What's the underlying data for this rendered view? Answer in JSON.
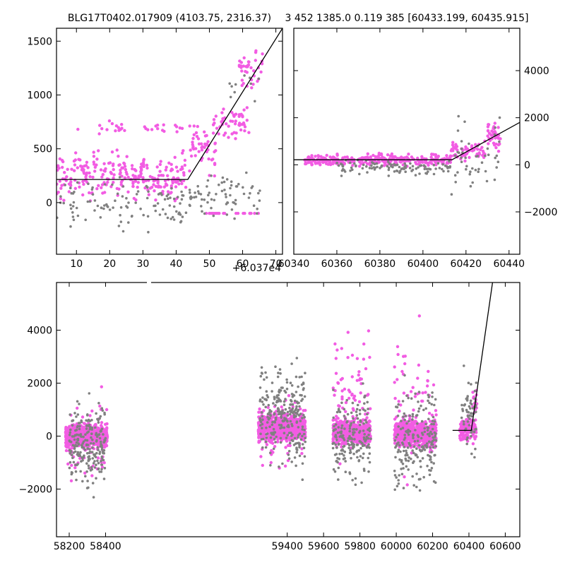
{
  "colors": {
    "magenta": "#f25ce3",
    "gray": "#808080",
    "model_line": "#000000",
    "frame": "#000000",
    "background": "#ffffff"
  },
  "chart_data": [
    {
      "id": "top-left",
      "type": "scatter",
      "title": "BLG17T0402.017909 (4103.75, 2316.37)",
      "xlim": [
        4,
        72
      ],
      "ylim": [
        -480,
        1620
      ],
      "x_offset_label": "+6.037e4",
      "xticks": [
        10,
        20,
        30,
        40,
        50,
        60,
        70
      ],
      "xtick_labels": [
        "10",
        "20",
        "30",
        "40",
        "50",
        "60",
        "70"
      ],
      "yticks": [
        0,
        500,
        1000,
        1500
      ],
      "ytick_labels": [
        "0",
        "500",
        "1000",
        "1500"
      ],
      "yaxis_side": "left",
      "model_line": {
        "x": [
          4,
          43.5,
          72
        ],
        "y": [
          215,
          215,
          1620
        ]
      },
      "series": [
        {
          "color": "magenta",
          "marker_radius": 2.2,
          "clusters": [
            {
              "x": [
                4,
                43
              ],
              "y": [
                -100,
                600
              ],
              "n": 260
            },
            {
              "x": [
                8,
                42
              ],
              "y": [
                600,
                780
              ],
              "n": 30
            },
            {
              "x": [
                44,
                52
              ],
              "y": [
                150,
                900
              ],
              "n": 50
            },
            {
              "x": [
                51,
                62
              ],
              "y": [
                500,
                1000
              ],
              "n": 50
            },
            {
              "x": [
                59,
                66
              ],
              "y": [
                900,
                1550
              ],
              "n": 40
            },
            {
              "x": [
                49,
                65
              ],
              "y": [
                -100,
                -100
              ],
              "n": 22
            }
          ]
        },
        {
          "color": "gray",
          "marker_radius": 1.8,
          "clusters": [
            {
              "x": [
                4,
                43
              ],
              "y": [
                -420,
                350
              ],
              "n": 110
            },
            {
              "x": [
                44,
                66
              ],
              "y": [
                -300,
                400
              ],
              "n": 70
            },
            {
              "x": [
                55,
                66
              ],
              "y": [
                800,
                1350
              ],
              "n": 10
            }
          ]
        }
      ]
    },
    {
      "id": "top-right",
      "type": "scatter",
      "title": "3 452 1385.0 0.119 385 [60433.199, 60435.915]",
      "xlim": [
        60340,
        60445
      ],
      "ylim": [
        -3800,
        5800
      ],
      "xticks": [
        60340,
        60360,
        60380,
        60400,
        60420,
        60440
      ],
      "xtick_labels": [
        "60340",
        "60360",
        "60380",
        "60400",
        "60420",
        "60440"
      ],
      "yticks": [
        -2000,
        0,
        2000,
        4000
      ],
      "ytick_labels": [
        "−2000",
        "0",
        "2000",
        "4000"
      ],
      "yaxis_side": "right",
      "model_line": {
        "x": [
          60340,
          60413.5,
          60445
        ],
        "y": [
          215,
          215,
          1800
        ]
      },
      "series": [
        {
          "color": "magenta",
          "marker_radius": 2.2,
          "clusters": [
            {
              "x": [
                60345,
                60413
              ],
              "y": [
                -200,
                600
              ],
              "n": 300
            },
            {
              "x": [
                60413,
                60430
              ],
              "y": [
                -100,
                1200
              ],
              "n": 60
            },
            {
              "x": [
                60430,
                60436
              ],
              "y": [
                300,
                2200
              ],
              "n": 40
            }
          ]
        },
        {
          "color": "gray",
          "marker_radius": 1.8,
          "clusters": [
            {
              "x": [
                60360,
                60413
              ],
              "y": [
                -600,
                400
              ],
              "n": 110
            },
            {
              "x": [
                60413,
                60436
              ],
              "y": [
                -2500,
                2600
              ],
              "n": 45
            }
          ]
        }
      ]
    },
    {
      "id": "bottom",
      "type": "scatter",
      "title": "",
      "xlim": [
        58130,
        60680
      ],
      "ylim": [
        -3800,
        5800
      ],
      "xticks": [
        58200,
        58400,
        59400,
        59600,
        59800,
        60000,
        60200,
        60400,
        60600
      ],
      "xtick_labels": [
        "58200",
        "58400",
        "59400",
        "59600",
        "59800",
        "60000",
        "60200",
        "60400",
        "60600"
      ],
      "yticks": [
        -2000,
        0,
        2000,
        4000
      ],
      "ytick_labels": [
        "−2000",
        "0",
        "2000",
        "4000"
      ],
      "yaxis_side": "left",
      "model_line": {
        "x": [
          60310,
          60413,
          60530
        ],
        "y": [
          215,
          215,
          5800
        ]
      },
      "series": [
        {
          "color": "magenta",
          "marker_radius": 2.2,
          "clusters": [
            {
              "x": [
                58180,
                58410
              ],
              "y": [
                -700,
                700
              ],
              "n": 700
            },
            {
              "x": [
                58180,
                58410
              ],
              "y": [
                -2800,
                2400
              ],
              "n": 60
            },
            {
              "x": [
                59240,
                59500
              ],
              "y": [
                -500,
                1100
              ],
              "n": 700
            },
            {
              "x": [
                59240,
                59500
              ],
              "y": [
                -2000,
                2600
              ],
              "n": 70
            },
            {
              "x": [
                59650,
                59860
              ],
              "y": [
                -600,
                900
              ],
              "n": 600
            },
            {
              "x": [
                59650,
                59860
              ],
              "y": [
                -2400,
                5500
              ],
              "n": 70
            },
            {
              "x": [
                59990,
                60220
              ],
              "y": [
                -700,
                900
              ],
              "n": 600
            },
            {
              "x": [
                59990,
                60220
              ],
              "y": [
                -3600,
                5500
              ],
              "n": 70
            },
            {
              "x": [
                60350,
                60440
              ],
              "y": [
                -500,
                1000
              ],
              "n": 140
            },
            {
              "x": [
                60420,
                60445
              ],
              "y": [
                500,
                2000
              ],
              "n": 20
            }
          ]
        },
        {
          "color": "gray",
          "marker_radius": 1.8,
          "clusters": [
            {
              "x": [
                58200,
                58400
              ],
              "y": [
                -2800,
                2300
              ],
              "n": 220
            },
            {
              "x": [
                59250,
                59500
              ],
              "y": [
                -2000,
                3600
              ],
              "n": 260
            },
            {
              "x": [
                59650,
                59860
              ],
              "y": [
                -2500,
                2400
              ],
              "n": 180
            },
            {
              "x": [
                59990,
                60220
              ],
              "y": [
                -3200,
                3000
              ],
              "n": 200
            },
            {
              "x": [
                60360,
                60440
              ],
              "y": [
                -1500,
                3300
              ],
              "n": 60
            }
          ]
        }
      ]
    }
  ]
}
